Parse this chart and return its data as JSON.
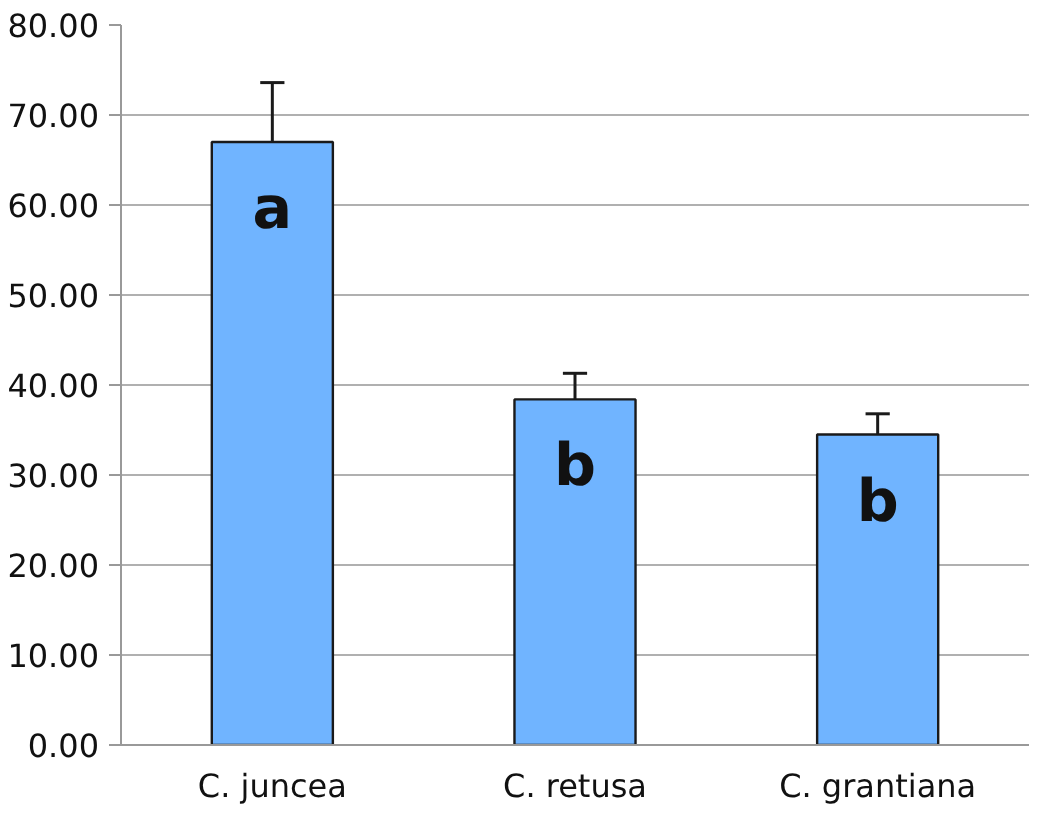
{
  "chart_data": {
    "type": "bar",
    "categories": [
      "C. juncea",
      "C. retusa",
      "C. grantiana"
    ],
    "values": [
      67.0,
      38.4,
      34.5
    ],
    "color": "#70b4ff",
    "errors": [
      [
        67.0,
        73.6
      ],
      [
        38.4,
        41.3
      ],
      [
        34.5,
        36.8
      ]
    ],
    "ylim": [
      0,
      80
    ],
    "yticks": [
      {
        "value": 0,
        "label": "0.00"
      },
      {
        "value": 10,
        "label": "10.00"
      },
      {
        "value": 20,
        "label": "20.00"
      },
      {
        "value": 30,
        "label": "30.00"
      },
      {
        "value": 40,
        "label": "40.00"
      },
      {
        "value": 50,
        "label": "50.00"
      },
      {
        "value": 60,
        "label": "60.00"
      },
      {
        "value": 70,
        "label": "70.00"
      },
      {
        "value": 80,
        "label": "80.00"
      }
    ],
    "grid": "y",
    "annotations": [
      "a",
      "b",
      "b"
    ]
  }
}
